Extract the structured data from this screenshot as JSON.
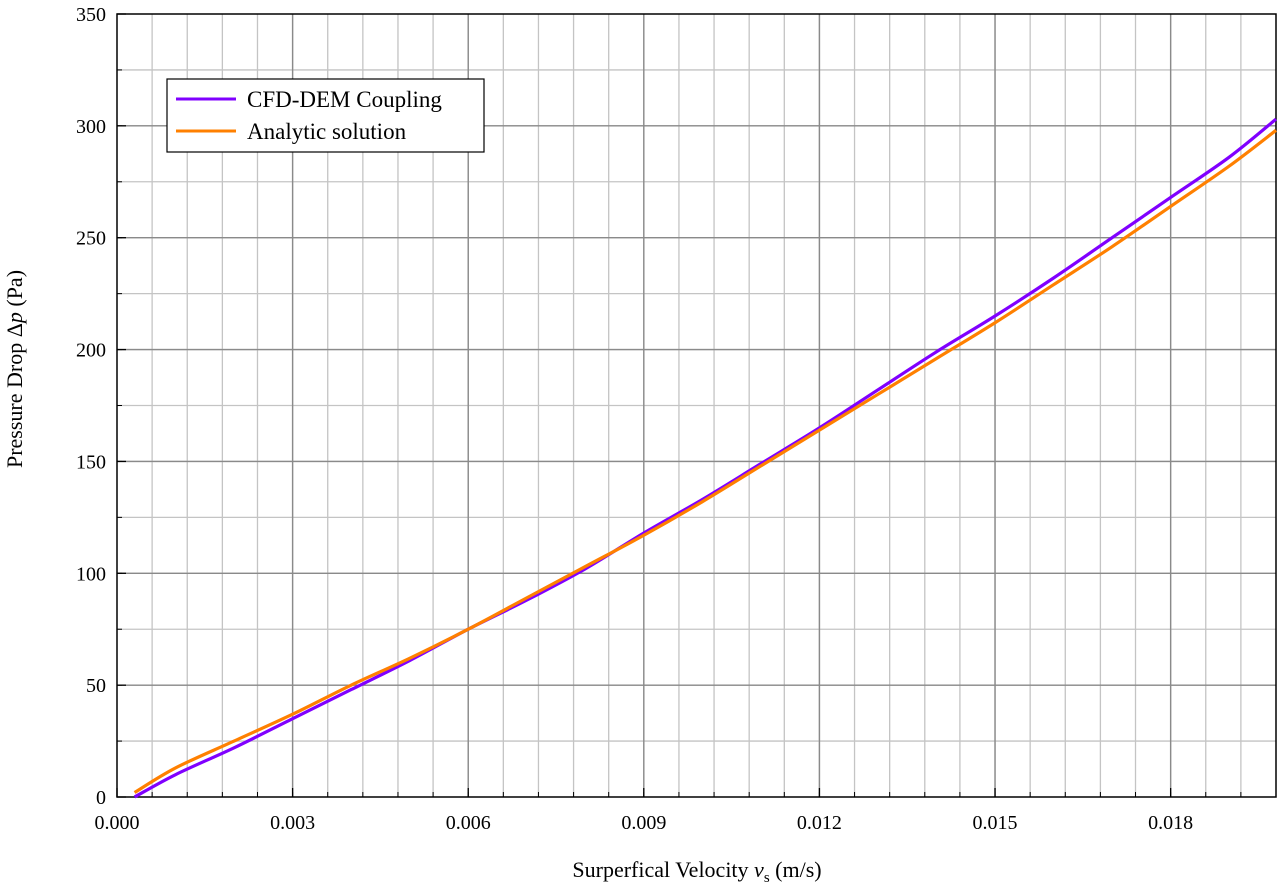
{
  "chart_data": {
    "type": "line",
    "title": "",
    "xlabel_main": "Surperfical Velocity ",
    "xlabel_var": "v",
    "xlabel_sub": "s",
    "xlabel_unit": " (m/s)",
    "ylabel_main": "Pressure Drop Δ",
    "ylabel_var": "p",
    "ylabel_unit": " (Pa)",
    "xlim": [
      0.0,
      0.0198
    ],
    "ylim": [
      0,
      350
    ],
    "x_major_ticks": [
      0.0,
      0.003,
      0.006,
      0.009,
      0.012,
      0.015,
      0.018
    ],
    "x_tick_labels": [
      "0.000",
      "0.003",
      "0.006",
      "0.009",
      "0.012",
      "0.015",
      "0.018"
    ],
    "x_minor_step": 0.0006,
    "y_major_ticks": [
      0,
      50,
      100,
      150,
      200,
      250,
      300,
      350
    ],
    "y_tick_labels": [
      "0",
      "50",
      "100",
      "150",
      "200",
      "250",
      "300",
      "350"
    ],
    "y_minor_step": 25,
    "grid": true,
    "legend_position": "top-left",
    "series": [
      {
        "name": "CFD-DEM Coupling",
        "color": "#8000ff",
        "x": [
          0.0003,
          0.001,
          0.002,
          0.003,
          0.004,
          0.005,
          0.006,
          0.007,
          0.008,
          0.009,
          0.01,
          0.011,
          0.012,
          0.013,
          0.014,
          0.015,
          0.016,
          0.017,
          0.018,
          0.019,
          0.0198
        ],
        "y": [
          0,
          10,
          22,
          35,
          48,
          61,
          75,
          88,
          102,
          118,
          133,
          149,
          165,
          182,
          199,
          215,
          232,
          250,
          268,
          286,
          303
        ]
      },
      {
        "name": "Analytic solution",
        "color": "#ff8000",
        "x": [
          0.0003,
          0.001,
          0.002,
          0.003,
          0.004,
          0.005,
          0.006,
          0.007,
          0.008,
          0.009,
          0.01,
          0.011,
          0.012,
          0.013,
          0.014,
          0.015,
          0.016,
          0.017,
          0.018,
          0.019,
          0.0198
        ],
        "y": [
          2,
          13,
          25,
          37,
          50,
          62,
          75,
          89,
          103,
          117,
          132,
          148,
          164,
          180,
          196,
          212,
          229,
          246,
          264,
          282,
          298
        ]
      }
    ]
  }
}
